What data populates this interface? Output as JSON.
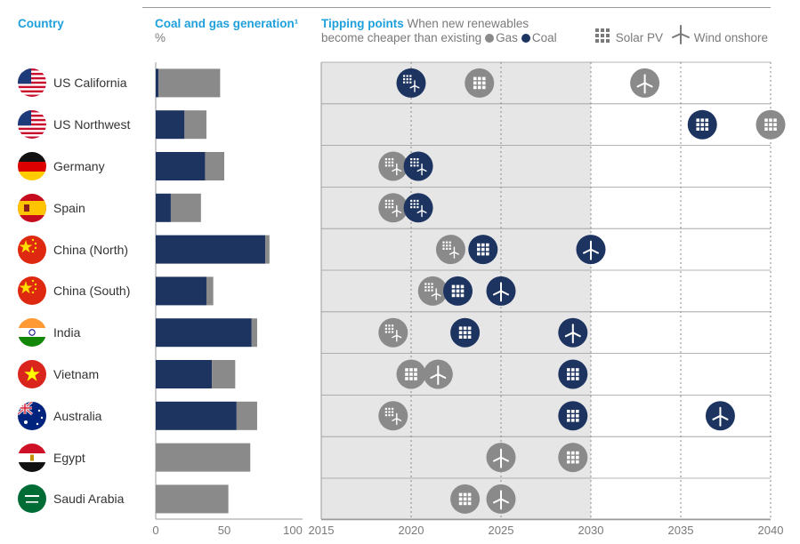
{
  "headers": {
    "country": "Country",
    "generation_title": "Coal and gas generation¹",
    "generation_unit": "%",
    "tipping_title": "Tipping points",
    "tipping_sub1": "When new renewables",
    "tipping_sub2": "become cheaper than existing",
    "legend_gas": "Gas",
    "legend_coal": "Coal",
    "legend_solar": "Solar PV",
    "legend_wind": "Wind onshore"
  },
  "colors": {
    "coal": "#1d3461",
    "gas": "#8a8a8a",
    "accent": "#1ea0dc",
    "shade": "#e6e6e6"
  },
  "chart_data": [
    {
      "type": "bar",
      "stacked": true,
      "orientation": "horizontal",
      "categories": [
        "US California",
        "US Northwest",
        "Germany",
        "Spain",
        "China (North)",
        "China (South)",
        "India",
        "Vietnam",
        "Australia",
        "Egypt",
        "Saudi Arabia"
      ],
      "series": [
        {
          "name": "Coal",
          "values": [
            2,
            21,
            36,
            11,
            80,
            37,
            70,
            41,
            59,
            0,
            0
          ]
        },
        {
          "name": "Gas",
          "values": [
            45,
            16,
            14,
            22,
            3,
            5,
            4,
            17,
            15,
            69,
            53
          ]
        }
      ],
      "title": "Coal and gas generation¹",
      "ylabel": "%",
      "xlim": [
        0,
        100
      ],
      "xticks": [
        0,
        50,
        100
      ]
    },
    {
      "type": "scatter",
      "title": "Tipping points",
      "xlim": [
        2015,
        2040
      ],
      "xticks": [
        2015,
        2020,
        2025,
        2030,
        2035,
        2040
      ],
      "shaded_until": 2030,
      "grid": true,
      "rows": [
        {
          "country": "US California",
          "points": [
            {
              "year": 2020,
              "fuel": "coal",
              "tech": "solar-wind"
            },
            {
              "year": 2023.8,
              "fuel": "gas",
              "tech": "solar"
            },
            {
              "year": 2033,
              "fuel": "gas",
              "tech": "wind"
            }
          ]
        },
        {
          "country": "US Northwest",
          "points": [
            {
              "year": 2036.2,
              "fuel": "coal",
              "tech": "solar"
            },
            {
              "year": 2040,
              "fuel": "gas",
              "tech": "solar"
            }
          ]
        },
        {
          "country": "Germany",
          "points": [
            {
              "year": 2019,
              "fuel": "gas",
              "tech": "solar-wind"
            },
            {
              "year": 2020.4,
              "fuel": "coal",
              "tech": "solar-wind"
            }
          ]
        },
        {
          "country": "Spain",
          "points": [
            {
              "year": 2019,
              "fuel": "gas",
              "tech": "solar-wind"
            },
            {
              "year": 2020.4,
              "fuel": "coal",
              "tech": "solar-wind"
            }
          ]
        },
        {
          "country": "China (North)",
          "points": [
            {
              "year": 2022.2,
              "fuel": "gas",
              "tech": "solar-wind"
            },
            {
              "year": 2024,
              "fuel": "coal",
              "tech": "solar"
            },
            {
              "year": 2030,
              "fuel": "coal",
              "tech": "wind"
            }
          ]
        },
        {
          "country": "China (South)",
          "points": [
            {
              "year": 2021.2,
              "fuel": "gas",
              "tech": "solar-wind"
            },
            {
              "year": 2022.6,
              "fuel": "coal",
              "tech": "solar"
            },
            {
              "year": 2025,
              "fuel": "coal",
              "tech": "wind"
            }
          ]
        },
        {
          "country": "India",
          "points": [
            {
              "year": 2019,
              "fuel": "gas",
              "tech": "solar-wind"
            },
            {
              "year": 2023,
              "fuel": "coal",
              "tech": "solar"
            },
            {
              "year": 2029,
              "fuel": "coal",
              "tech": "wind"
            }
          ]
        },
        {
          "country": "Vietnam",
          "points": [
            {
              "year": 2020,
              "fuel": "gas",
              "tech": "solar"
            },
            {
              "year": 2021.5,
              "fuel": "gas",
              "tech": "wind"
            },
            {
              "year": 2029,
              "fuel": "coal",
              "tech": "solar"
            }
          ]
        },
        {
          "country": "Australia",
          "points": [
            {
              "year": 2019,
              "fuel": "gas",
              "tech": "solar-wind"
            },
            {
              "year": 2029,
              "fuel": "coal",
              "tech": "solar"
            },
            {
              "year": 2037.2,
              "fuel": "coal",
              "tech": "wind"
            }
          ]
        },
        {
          "country": "Egypt",
          "points": [
            {
              "year": 2025,
              "fuel": "gas",
              "tech": "wind"
            },
            {
              "year": 2029,
              "fuel": "gas",
              "tech": "solar"
            }
          ]
        },
        {
          "country": "Saudi Arabia",
          "points": [
            {
              "year": 2023,
              "fuel": "gas",
              "tech": "solar"
            },
            {
              "year": 2025,
              "fuel": "gas",
              "tech": "wind"
            }
          ]
        }
      ]
    }
  ],
  "flags": [
    "us",
    "us",
    "de",
    "es",
    "cn",
    "cn",
    "in",
    "vn",
    "au",
    "eg",
    "sa"
  ]
}
